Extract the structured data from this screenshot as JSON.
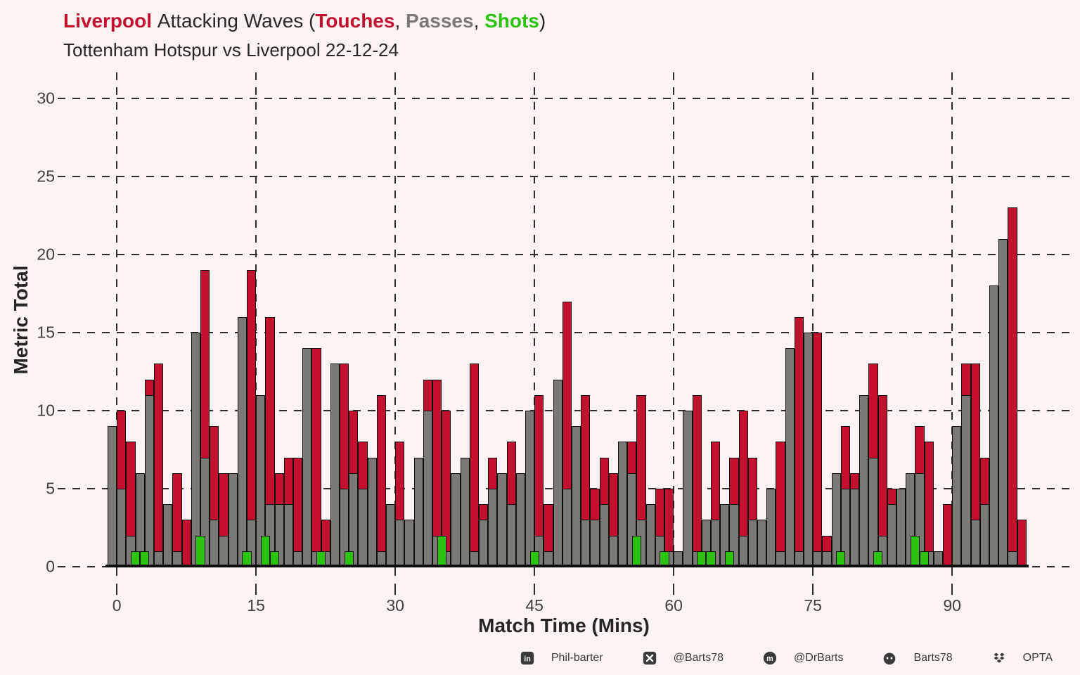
{
  "header": {
    "title_segments": [
      {
        "text": "Liverpool ",
        "color": "#C2102E",
        "bold": true
      },
      {
        "text": "Attacking Waves (",
        "color": "#282828",
        "bold": false
      },
      {
        "text": "Touches",
        "color": "#C2102E",
        "bold": true
      },
      {
        "text": ", ",
        "color": "#282828",
        "bold": false
      },
      {
        "text": "Passes",
        "color": "#7B7974",
        "bold": true
      },
      {
        "text": ", ",
        "color": "#282828",
        "bold": false
      },
      {
        "text": "Shots",
        "color": "#2BC30D",
        "bold": true
      },
      {
        "text": ")",
        "color": "#282828",
        "bold": false
      }
    ],
    "subtitle": "Tottenham Hotspur vs Liverpool 22-12-24"
  },
  "chart_data": {
    "type": "bar",
    "title": "Liverpool Attacking Waves (Touches, Passes, Shots)",
    "subtitle": "Tottenham Hotspur vs Liverpool 22-12-24",
    "xlabel": "Match Time (Mins)",
    "ylabel": "Metric Total",
    "x_ticks": [
      0,
      15,
      30,
      45,
      60,
      75,
      90
    ],
    "y_ticks": [
      0,
      5,
      10,
      15,
      20,
      25,
      30
    ],
    "ylim": [
      0,
      31
    ],
    "x_start_minute": -1,
    "bars_per_minute": 1,
    "grid": "dashed",
    "legend_position": "in-title",
    "series": [
      {
        "name": "Touches",
        "color": "#C2102E",
        "values": [
          9,
          10,
          8,
          6,
          12,
          13,
          4,
          6,
          3,
          15,
          19,
          9,
          6,
          6,
          16,
          19,
          11,
          16,
          6,
          7,
          7,
          14,
          14,
          3,
          13,
          13,
          10,
          8,
          7,
          11,
          4,
          8,
          3,
          7,
          12,
          12,
          10,
          6,
          7,
          13,
          4,
          7,
          6,
          8,
          6,
          10,
          11,
          4,
          12,
          17,
          9,
          11,
          5,
          7,
          6,
          8,
          8,
          11,
          4,
          5,
          5,
          1,
          10,
          11,
          3,
          8,
          4,
          7,
          10,
          7,
          3,
          5,
          8,
          14,
          16,
          15,
          15,
          2,
          6,
          9,
          6,
          11,
          13,
          11,
          5,
          5,
          6,
          9,
          8,
          1,
          4,
          9,
          13,
          13,
          7,
          18,
          21,
          23,
          3
        ]
      },
      {
        "name": "Passes",
        "color": "#7B7974",
        "values": [
          9,
          5,
          2,
          6,
          11,
          1,
          4,
          1,
          0,
          15,
          7,
          3,
          2,
          6,
          16,
          3,
          11,
          4,
          4,
          4,
          1,
          14,
          1,
          1,
          13,
          5,
          6,
          5,
          7,
          1,
          4,
          3,
          3,
          7,
          10,
          2,
          1,
          6,
          7,
          1,
          3,
          5,
          6,
          4,
          6,
          10,
          2,
          1,
          12,
          5,
          9,
          3,
          3,
          4,
          2,
          8,
          6,
          3,
          4,
          2,
          1,
          1,
          10,
          1,
          3,
          3,
          4,
          4,
          2,
          3,
          3,
          5,
          1,
          14,
          1,
          15,
          1,
          1,
          6,
          5,
          5,
          11,
          7,
          2,
          4,
          5,
          6,
          6,
          1,
          1,
          0,
          9,
          11,
          3,
          4,
          18,
          21,
          1,
          0
        ]
      },
      {
        "name": "Shots",
        "color": "#2BC30D",
        "points": [
          {
            "bar": 4,
            "value": 1
          },
          {
            "bar": 5,
            "value": 1
          },
          {
            "bar": 11,
            "value": 2
          },
          {
            "bar": 16,
            "value": 1
          },
          {
            "bar": 18,
            "value": 2
          },
          {
            "bar": 19,
            "value": 1
          },
          {
            "bar": 24,
            "value": 1
          },
          {
            "bar": 27,
            "value": 1
          },
          {
            "bar": 37,
            "value": 2
          },
          {
            "bar": 47,
            "value": 1
          },
          {
            "bar": 58,
            "value": 2
          },
          {
            "bar": 61,
            "value": 1
          },
          {
            "bar": 65,
            "value": 1
          },
          {
            "bar": 66,
            "value": 1
          },
          {
            "bar": 68,
            "value": 1
          },
          {
            "bar": 80,
            "value": 1
          },
          {
            "bar": 84,
            "value": 1
          },
          {
            "bar": 88,
            "value": 2
          },
          {
            "bar": 89,
            "value": 1
          }
        ]
      }
    ]
  },
  "footer": {
    "items": [
      {
        "icon": "linkedin",
        "label": "Phil-barter"
      },
      {
        "icon": "x",
        "label": "@Barts78"
      },
      {
        "icon": "mastodon",
        "label": "@DrBarts"
      },
      {
        "icon": "github",
        "label": "Barts78"
      },
      {
        "icon": "dropbox",
        "label": "OPTA"
      }
    ]
  },
  "colors": {
    "background": "#FCF4F2",
    "touches_red": "#C2102E",
    "passes_gray": "#7B7974",
    "shots_green": "#2BC30D",
    "grid": "#2e2e2e",
    "bar_border": "#0f0f0f",
    "axis_text": "#3f3f3f",
    "footer_text": "#3a3a3a"
  }
}
